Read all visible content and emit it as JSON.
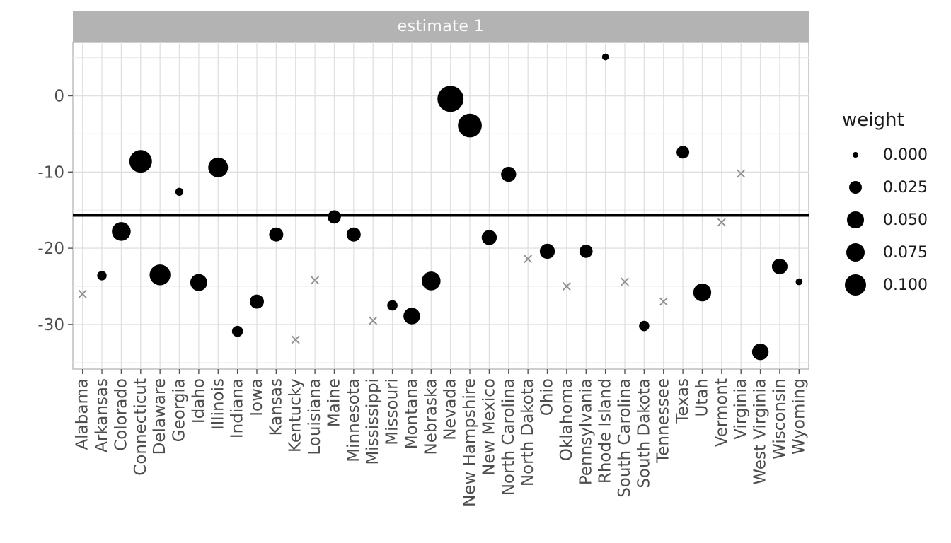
{
  "chart_data": {
    "type": "scatter",
    "facet_title": "estimate 1",
    "x_axis": {
      "categories": [
        "Alabama",
        "Arkansas",
        "Colorado",
        "Connecticut",
        "Delaware",
        "Georgia",
        "Idaho",
        "Illinois",
        "Indiana",
        "Iowa",
        "Kansas",
        "Kentucky",
        "Louisiana",
        "Maine",
        "Minnesota",
        "Mississippi",
        "Missouri",
        "Montana",
        "Nebraska",
        "Nevada",
        "New Hampshire",
        "New Mexico",
        "North Carolina",
        "North Dakota",
        "Ohio",
        "Oklahoma",
        "Pennsylvania",
        "Rhode Island",
        "South Carolina",
        "South Dakota",
        "Tennessee",
        "Texas",
        "Utah",
        "Vermont",
        "Virginia",
        "West Virginia",
        "Wisconsin",
        "Wyoming"
      ]
    },
    "y_axis": {
      "tick_values": [
        0,
        -10,
        -20,
        -30
      ],
      "tick_labels": [
        "0",
        "-10",
        "-20",
        "-30"
      ],
      "minor_tick_values": [
        5,
        -5,
        -15,
        -25,
        -35
      ],
      "range": [
        -35.8,
        7.0
      ],
      "grid": true
    },
    "reference_line": {
      "value": -15.7
    },
    "points": [
      {
        "state": "Alabama",
        "estimate": -26.0,
        "weight": 0.0,
        "marker": "cross"
      },
      {
        "state": "Arkansas",
        "estimate": -23.6,
        "weight": 0.007,
        "marker": "circle"
      },
      {
        "state": "Colorado",
        "estimate": -17.8,
        "weight": 0.072,
        "marker": "circle"
      },
      {
        "state": "Connecticut",
        "estimate": -8.6,
        "weight": 0.118,
        "marker": "circle"
      },
      {
        "state": "Delaware",
        "estimate": -23.5,
        "weight": 0.095,
        "marker": "circle"
      },
      {
        "state": "Georgia",
        "estimate": -12.6,
        "weight": 0.003,
        "marker": "circle"
      },
      {
        "state": "Idaho",
        "estimate": -24.5,
        "weight": 0.054,
        "marker": "circle"
      },
      {
        "state": "Illinois",
        "estimate": -9.4,
        "weight": 0.083,
        "marker": "circle"
      },
      {
        "state": "Indiana",
        "estimate": -30.9,
        "weight": 0.013,
        "marker": "circle"
      },
      {
        "state": "Iowa",
        "estimate": -27.0,
        "weight": 0.031,
        "marker": "circle"
      },
      {
        "state": "Kansas",
        "estimate": -18.2,
        "weight": 0.031,
        "marker": "circle"
      },
      {
        "state": "Kentucky",
        "estimate": -32.0,
        "weight": 0.0,
        "marker": "cross"
      },
      {
        "state": "Louisiana",
        "estimate": -24.2,
        "weight": 0.0,
        "marker": "cross"
      },
      {
        "state": "Maine",
        "estimate": -15.9,
        "weight": 0.025,
        "marker": "circle"
      },
      {
        "state": "Minnesota",
        "estimate": -18.2,
        "weight": 0.031,
        "marker": "circle"
      },
      {
        "state": "Mississippi",
        "estimate": -29.5,
        "weight": 0.0,
        "marker": "cross"
      },
      {
        "state": "Missouri",
        "estimate": -27.5,
        "weight": 0.01,
        "marker": "circle"
      },
      {
        "state": "Montana",
        "estimate": -28.9,
        "weight": 0.051,
        "marker": "circle"
      },
      {
        "state": "Nebraska",
        "estimate": -24.3,
        "weight": 0.072,
        "marker": "circle"
      },
      {
        "state": "Nevada",
        "estimate": -0.4,
        "weight": 0.17,
        "marker": "circle"
      },
      {
        "state": "New Hampshire",
        "estimate": -3.9,
        "weight": 0.135,
        "marker": "circle"
      },
      {
        "state": "New Mexico",
        "estimate": -18.6,
        "weight": 0.038,
        "marker": "circle"
      },
      {
        "state": "North Carolina",
        "estimate": -10.3,
        "weight": 0.038,
        "marker": "circle"
      },
      {
        "state": "North Dakota",
        "estimate": -21.4,
        "weight": 0.0,
        "marker": "cross"
      },
      {
        "state": "Ohio",
        "estimate": -20.4,
        "weight": 0.038,
        "marker": "circle"
      },
      {
        "state": "Oklahoma",
        "estimate": -25.0,
        "weight": 0.0,
        "marker": "cross"
      },
      {
        "state": "Pennsylvania",
        "estimate": -20.4,
        "weight": 0.025,
        "marker": "circle"
      },
      {
        "state": "Rhode Island",
        "estimate": 5.1,
        "weight": 0.001,
        "marker": "circle"
      },
      {
        "state": "South Carolina",
        "estimate": -24.4,
        "weight": 0.0,
        "marker": "cross"
      },
      {
        "state": "South Dakota",
        "estimate": -30.2,
        "weight": 0.01,
        "marker": "circle"
      },
      {
        "state": "Tennessee",
        "estimate": -27.0,
        "weight": 0.0,
        "marker": "cross"
      },
      {
        "state": "Texas",
        "estimate": -7.4,
        "weight": 0.022,
        "marker": "circle"
      },
      {
        "state": "Utah",
        "estimate": -25.8,
        "weight": 0.063,
        "marker": "circle"
      },
      {
        "state": "Vermont",
        "estimate": -16.6,
        "weight": 0.0,
        "marker": "cross"
      },
      {
        "state": "Virginia",
        "estimate": -10.2,
        "weight": 0.0,
        "marker": "cross"
      },
      {
        "state": "West Virginia",
        "estimate": -33.6,
        "weight": 0.05,
        "marker": "circle"
      },
      {
        "state": "Wisconsin",
        "estimate": -22.4,
        "weight": 0.042,
        "marker": "circle"
      },
      {
        "state": "Wyoming",
        "estimate": -24.4,
        "weight": 0.001,
        "marker": "circle"
      }
    ],
    "legend": {
      "title": "weight",
      "position": "right",
      "entries": [
        {
          "label": "0.000",
          "value": 0.0
        },
        {
          "label": "0.025",
          "value": 0.025
        },
        {
          "label": "0.050",
          "value": 0.05
        },
        {
          "label": "0.075",
          "value": 0.075
        },
        {
          "label": "0.100",
          "value": 0.1
        }
      ]
    }
  },
  "colors": {
    "strip_background": "#b3b3b3",
    "strip_text": "#fbfbfb",
    "panel_background": "#ffffff",
    "panel_border": "#b3b3b3",
    "grid_major": "#e0e0e0",
    "grid_minor": "#ededed",
    "point_fill": "#000000",
    "cross_stroke": "#8f8f8f",
    "reference_line": "#000000",
    "axis_text": "#4d4d4d",
    "tick_mark": "#555555",
    "legend_text": "#1a1a1a"
  }
}
